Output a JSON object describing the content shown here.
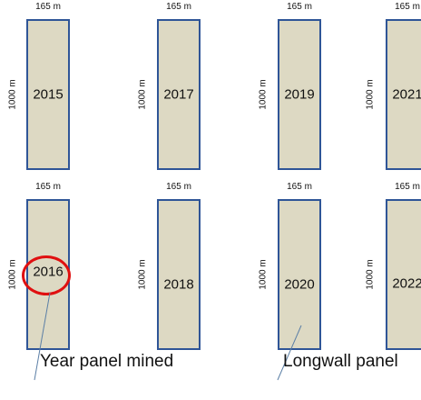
{
  "panels": [
    {
      "year": "2015",
      "width_label": "165 m",
      "length_label": "1000 m"
    },
    {
      "year": "2017",
      "width_label": "165 m",
      "length_label": "1000 m"
    },
    {
      "year": "2019",
      "width_label": "165 m",
      "length_label": "1000 m"
    },
    {
      "year": "2021",
      "width_label": "165 m",
      "length_label": "1000 m"
    },
    {
      "year": "2016",
      "width_label": "165 m",
      "length_label": "1000 m",
      "highlighted": true
    },
    {
      "year": "2018",
      "width_label": "165 m",
      "length_label": "1000 m"
    },
    {
      "year": "2020",
      "width_label": "165 m",
      "length_label": "1000 m"
    },
    {
      "year": "2022",
      "width_label": "165 m",
      "length_label": "1000 m"
    }
  ],
  "annotations": {
    "year_label": "Year panel mined",
    "panel_label": "Longwall panel"
  },
  "colors": {
    "panel_fill": "#ddd9c3",
    "panel_border": "#2f5597",
    "highlight": "#e01010",
    "leader_line": "#5b7fa6"
  }
}
